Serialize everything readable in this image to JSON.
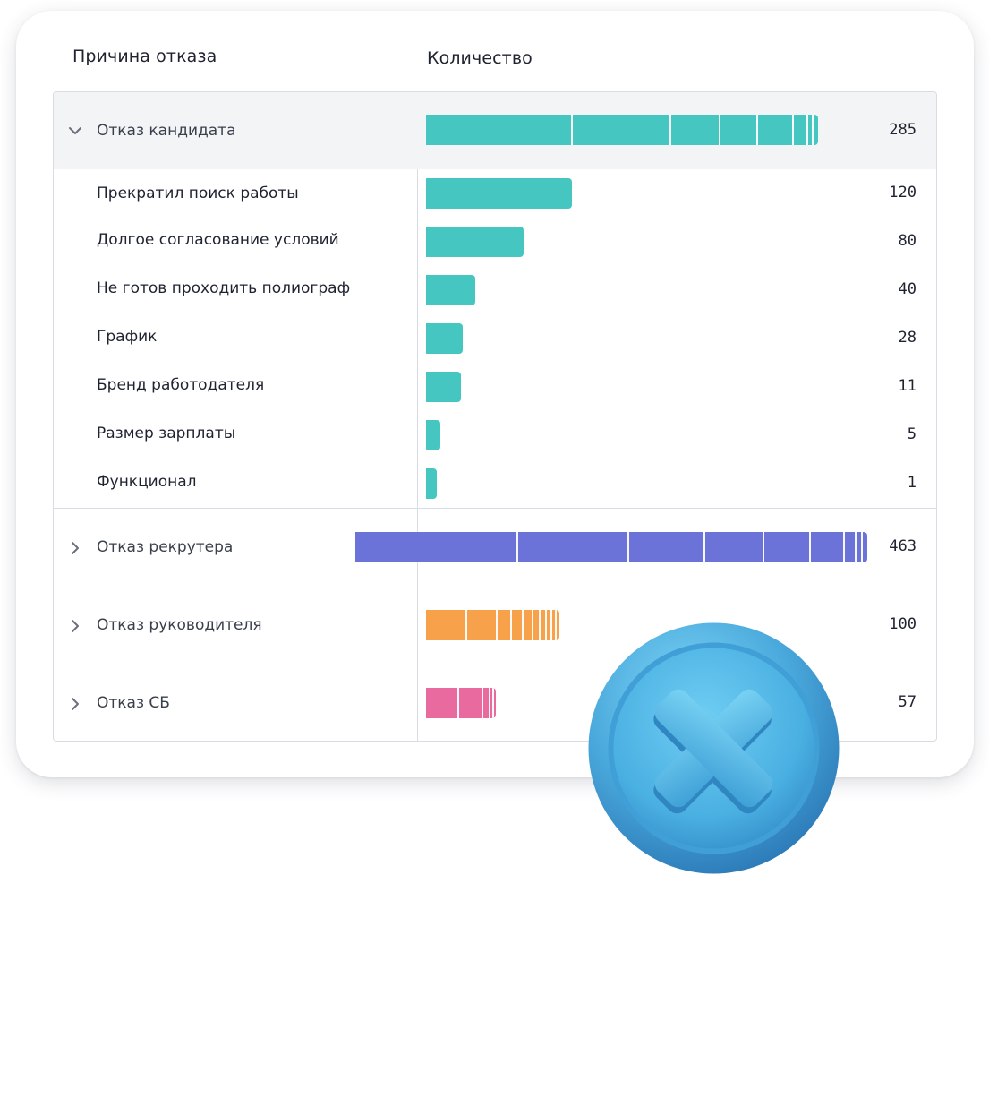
{
  "headers": {
    "reason": "Причина отказа",
    "quantity": "Количество"
  },
  "groups": [
    {
      "label": "Отказ кандидата",
      "value": "285",
      "expanded": true,
      "color": "#46c6c0",
      "children": [
        {
          "label": "Прекратил поиск работы",
          "value": "120"
        },
        {
          "label": "Долгое согласование условий",
          "value": "80"
        },
        {
          "label": "Не готов проходить полиограф",
          "value": "40"
        },
        {
          "label": "График",
          "value": "28"
        },
        {
          "label": "Бренд работодателя",
          "value": "11"
        },
        {
          "label": "Размер зарплаты",
          "value": "5"
        },
        {
          "label": "Функционал",
          "value": "1"
        }
      ]
    },
    {
      "label": "Отказ рекрутера",
      "value": "463",
      "expanded": false,
      "color": "#6b72d8"
    },
    {
      "label": "Отказ руководителя",
      "value": "100",
      "expanded": false,
      "color": "#f7a24a"
    },
    {
      "label": "Отказ СБ",
      "value": "57",
      "expanded": false,
      "color": "#e96a9e"
    }
  ],
  "icons": {
    "expanded": "chevron-down-icon",
    "collapsed": "chevron-right-icon",
    "badge": "close-coin-icon"
  },
  "badge_color": "#56b8e8"
}
